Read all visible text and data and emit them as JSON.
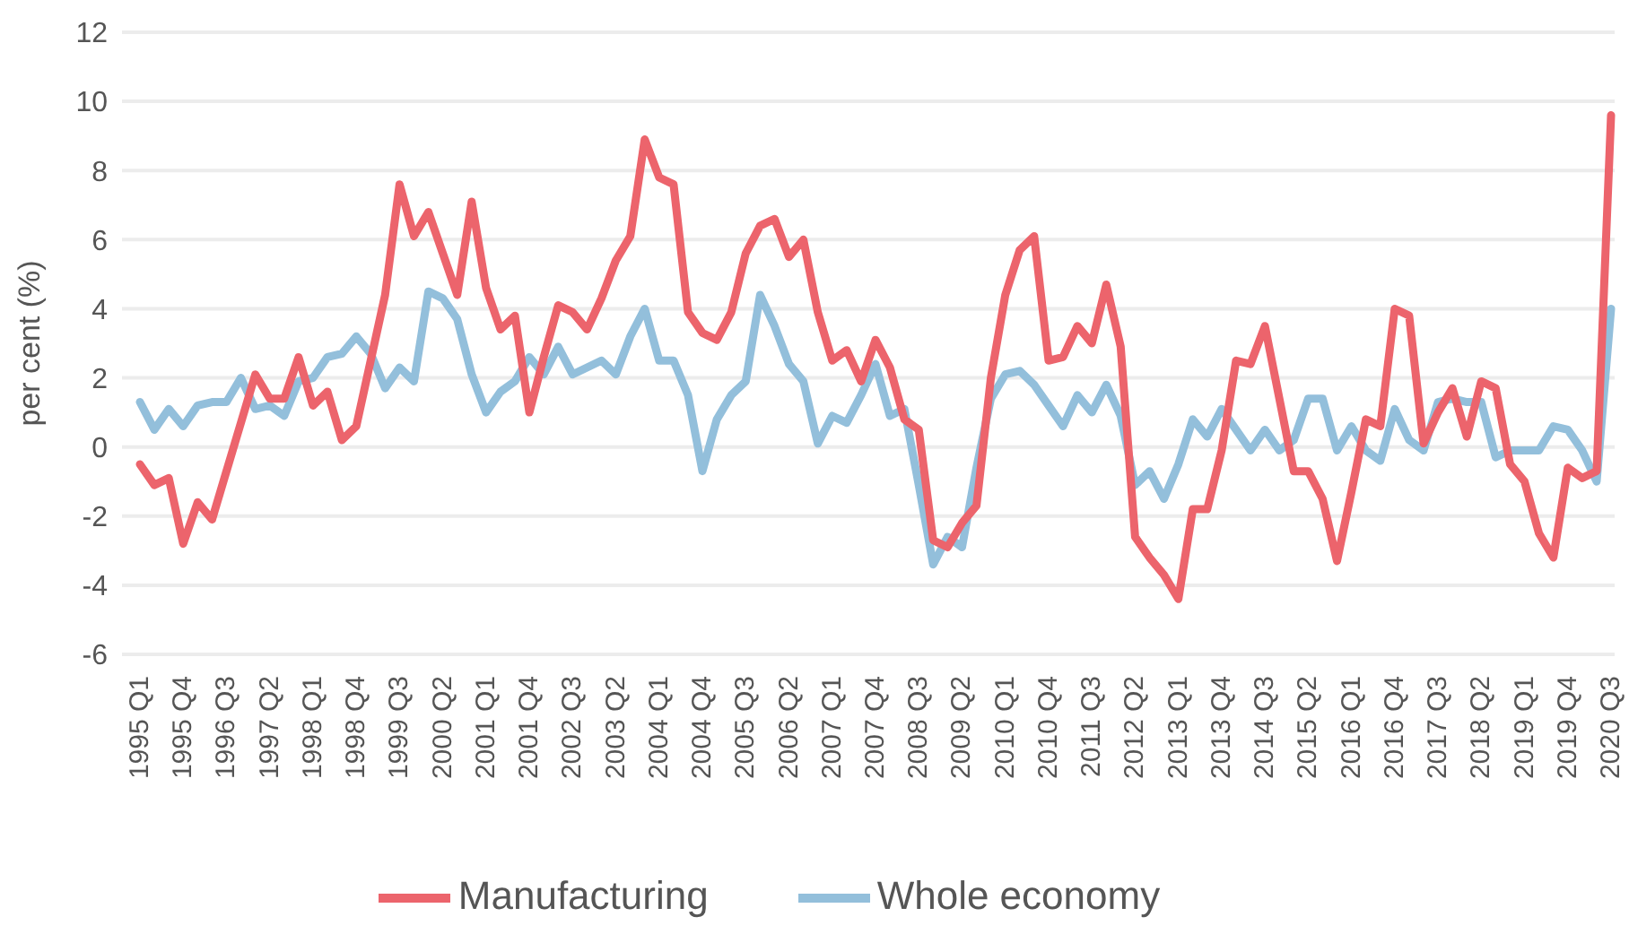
{
  "chart_data": {
    "type": "line",
    "ylabel": "per cent (%)",
    "categories": [
      "1995 Q1",
      null,
      null,
      "1995 Q4",
      null,
      null,
      "1996 Q3",
      null,
      null,
      "1997 Q2",
      null,
      null,
      "1998 Q1",
      null,
      null,
      "1998 Q4",
      null,
      null,
      "1999 Q3",
      null,
      null,
      "2000 Q2",
      null,
      null,
      "2001 Q1",
      null,
      null,
      "2001 Q4",
      null,
      null,
      "2002 Q3",
      null,
      null,
      "2003 Q2",
      null,
      null,
      "2004 Q1",
      null,
      null,
      "2004 Q4",
      null,
      null,
      "2005 Q3",
      null,
      null,
      "2006 Q2",
      null,
      null,
      "2007 Q1",
      null,
      null,
      "2007 Q4",
      null,
      null,
      "2008 Q3",
      null,
      null,
      "2009 Q2",
      null,
      null,
      "2010 Q1",
      null,
      null,
      "2010 Q4",
      null,
      null,
      "2011 Q3",
      null,
      null,
      "2012 Q2",
      null,
      null,
      "2013 Q1",
      null,
      null,
      "2013 Q4",
      null,
      null,
      "2014 Q3",
      null,
      null,
      "2015 Q2",
      null,
      null,
      "2016 Q1",
      null,
      null,
      "2016 Q4",
      null,
      null,
      "2017 Q3",
      null,
      null,
      "2018 Q2",
      null,
      null,
      "2019 Q1",
      null,
      null,
      "2019 Q4",
      null,
      null,
      "2020 Q3"
    ],
    "series": [
      {
        "name": "Whole economy",
        "color": "#93bfdb",
        "values": [
          1.3,
          0.5,
          1.1,
          0.6,
          1.2,
          1.3,
          1.3,
          2.0,
          1.1,
          1.2,
          0.9,
          1.9,
          2.0,
          2.6,
          2.7,
          3.2,
          2.7,
          1.7,
          2.3,
          1.9,
          4.5,
          4.3,
          3.7,
          2.1,
          1.0,
          1.6,
          1.9,
          2.6,
          2.1,
          2.9,
          2.1,
          2.3,
          2.5,
          2.1,
          3.2,
          4.0,
          2.5,
          2.5,
          1.5,
          -0.7,
          0.8,
          1.5,
          1.9,
          4.4,
          3.5,
          2.4,
          1.9,
          0.1,
          0.9,
          0.7,
          1.5,
          2.4,
          0.9,
          1.1,
          -1.1,
          -3.4,
          -2.6,
          -2.9,
          -0.6,
          1.4,
          2.1,
          2.2,
          1.8,
          1.2,
          0.6,
          1.5,
          1.0,
          1.8,
          0.9,
          -1.1,
          -0.7,
          -1.5,
          -0.5,
          0.8,
          0.3,
          1.1,
          0.5,
          -0.1,
          0.5,
          -0.1,
          0.2,
          1.4,
          1.4,
          -0.1,
          0.6,
          -0.1,
          -0.4,
          1.1,
          0.2,
          -0.1,
          1.3,
          1.4,
          1.3,
          1.3,
          -0.3,
          -0.1,
          -0.1,
          -0.1,
          0.6,
          0.5,
          -0.1,
          -1.0,
          4.0
        ]
      },
      {
        "name": "Manufacturing",
        "color": "#ec646c",
        "values": [
          -0.5,
          -1.1,
          -0.9,
          -2.8,
          -1.6,
          -2.1,
          -0.7,
          0.7,
          2.1,
          1.4,
          1.4,
          2.6,
          1.2,
          1.6,
          0.2,
          0.6,
          2.5,
          4.4,
          7.6,
          6.1,
          6.8,
          5.6,
          4.4,
          7.1,
          4.6,
          3.4,
          3.8,
          1.0,
          2.6,
          4.1,
          3.9,
          3.4,
          4.3,
          5.4,
          6.1,
          8.9,
          7.8,
          7.6,
          3.9,
          3.3,
          3.1,
          3.9,
          5.6,
          6.4,
          6.6,
          5.5,
          6.0,
          3.9,
          2.5,
          2.8,
          1.9,
          3.1,
          2.3,
          0.8,
          0.5,
          -2.7,
          -2.9,
          -2.2,
          -1.7,
          2.0,
          4.4,
          5.7,
          6.1,
          2.5,
          2.6,
          3.5,
          3.0,
          4.7,
          2.9,
          -2.6,
          -3.2,
          -3.7,
          -4.4,
          -1.8,
          -1.8,
          -0.1,
          2.5,
          2.4,
          3.5,
          1.4,
          -0.7,
          -0.7,
          -1.5,
          -3.3,
          -1.3,
          0.8,
          0.6,
          4.0,
          3.8,
          0.1,
          1.0,
          1.7,
          0.3,
          1.9,
          1.7,
          -0.5,
          -1.0,
          -2.5,
          -3.2,
          -0.6,
          -0.9,
          -0.7,
          9.6
        ]
      }
    ],
    "ylim": [
      -6,
      12
    ],
    "yticks": [
      -6,
      -4,
      -2,
      0,
      2,
      4,
      6,
      8,
      10,
      12
    ],
    "grid": "y",
    "legend": "bottom",
    "marker": "none",
    "line_style": "solid"
  }
}
